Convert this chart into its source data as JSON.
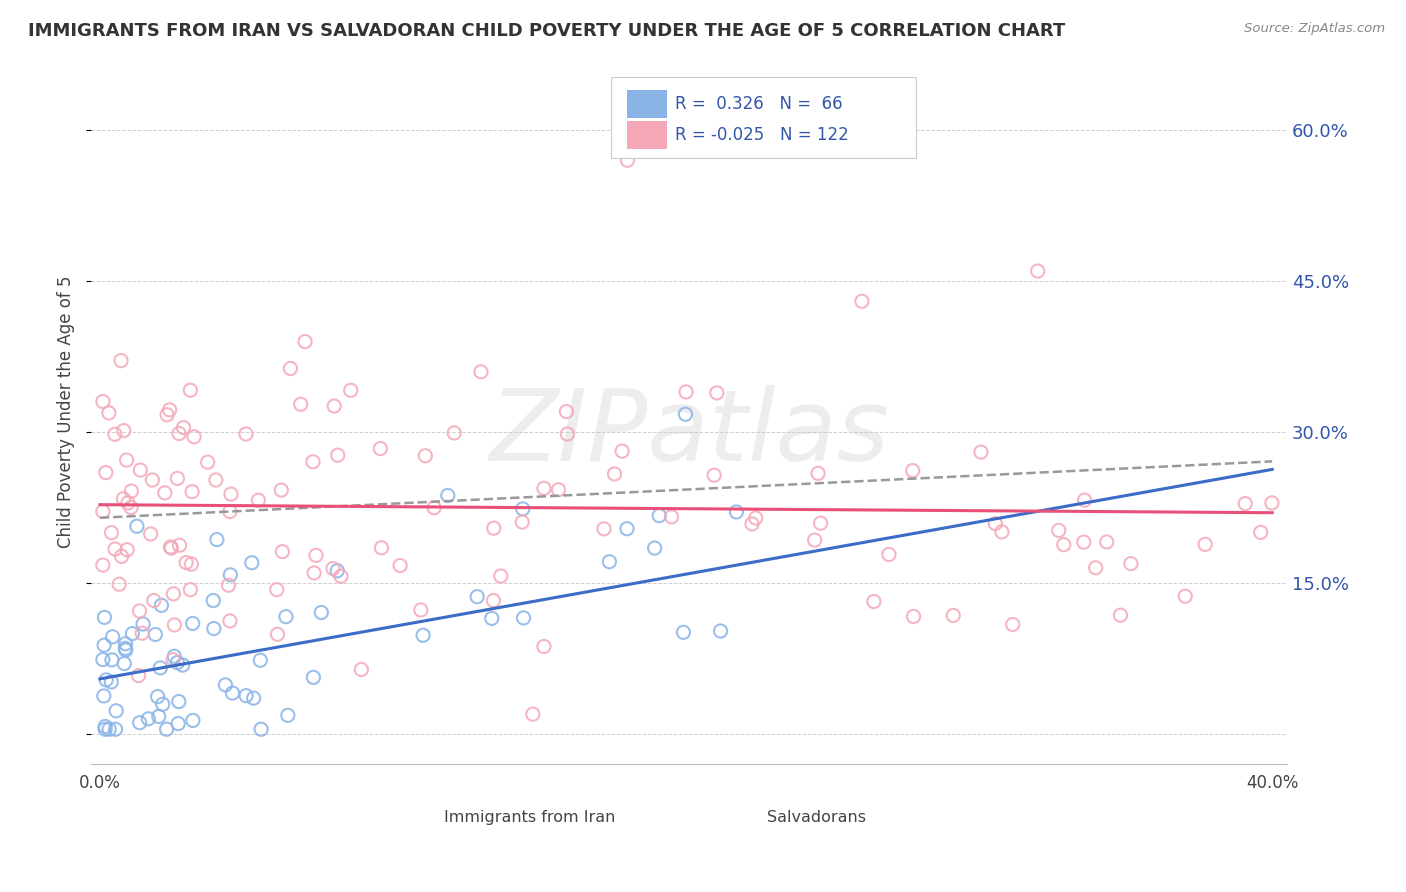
{
  "title": "IMMIGRANTS FROM IRAN VS SALVADORAN CHILD POVERTY UNDER THE AGE OF 5 CORRELATION CHART",
  "source": "Source: ZipAtlas.com",
  "xlabel_legend1": "Immigrants from Iran",
  "xlabel_legend2": "Salvadorans",
  "ylabel": "Child Poverty Under the Age of 5",
  "xlim": [
    -0.003,
    0.405
  ],
  "ylim": [
    -0.03,
    0.67
  ],
  "yticks": [
    0.0,
    0.15,
    0.3,
    0.45,
    0.6
  ],
  "ytick_labels": [
    "",
    "15.0%",
    "30.0%",
    "45.0%",
    "60.0%"
  ],
  "xticks": [
    0.0,
    0.4
  ],
  "xtick_labels": [
    "0.0%",
    "40.0%"
  ],
  "r1": 0.326,
  "n1": 66,
  "r2": -0.025,
  "n2": 122,
  "color_blue": "#8AB4E8",
  "color_pink": "#F4A8B8",
  "trend_blue_solid": "#3A6CC8",
  "trend_blue_dashed": "#999999",
  "trend_pink": "#E8507A",
  "watermark": "ZIPatlas",
  "background_color": "#FFFFFF",
  "grid_color": "#BBBBBB",
  "title_color": "#333333",
  "source_color": "#888888",
  "label_color": "#3355AA",
  "text_color": "#444444"
}
